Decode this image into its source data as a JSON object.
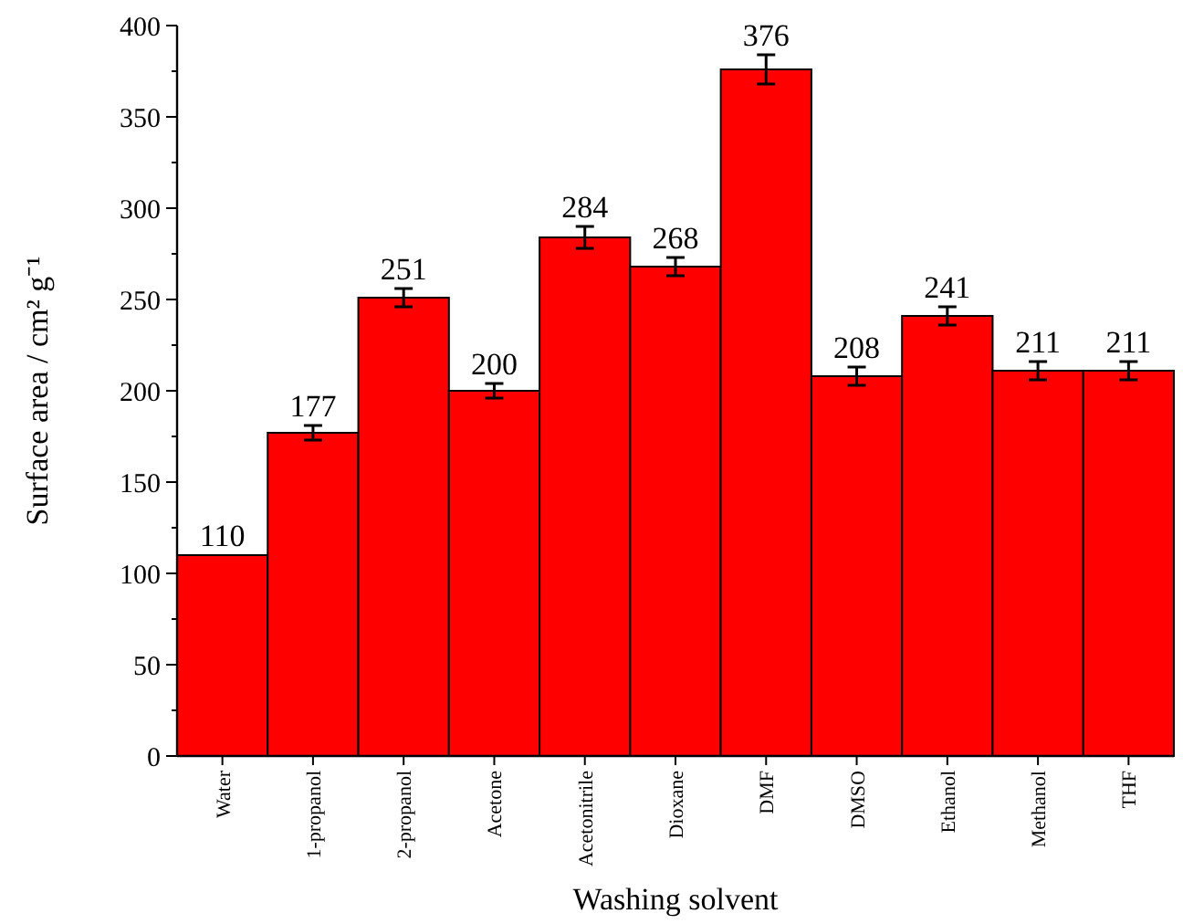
{
  "chart_data": {
    "type": "bar",
    "xlabel": "Washing solvent",
    "ylabel": "Surface area / cm² g⁻¹",
    "categories": [
      "Water",
      "1-propanol",
      "2-propanol",
      "Acetone",
      "Acetonitrile",
      "Dioxane",
      "DMF",
      "DMSO",
      "Ethanol",
      "Methanol",
      "THF"
    ],
    "values": [
      110,
      177,
      251,
      200,
      284,
      268,
      376,
      208,
      241,
      211,
      211
    ],
    "errors": [
      null,
      4,
      5,
      4,
      6,
      5,
      8,
      5,
      5,
      5,
      5
    ],
    "color": "#ff0000",
    "data_labels": true,
    "ylim": [
      0,
      400
    ],
    "yticks": [
      0,
      50,
      100,
      150,
      200,
      250,
      300,
      350,
      400
    ],
    "grid": false
  }
}
